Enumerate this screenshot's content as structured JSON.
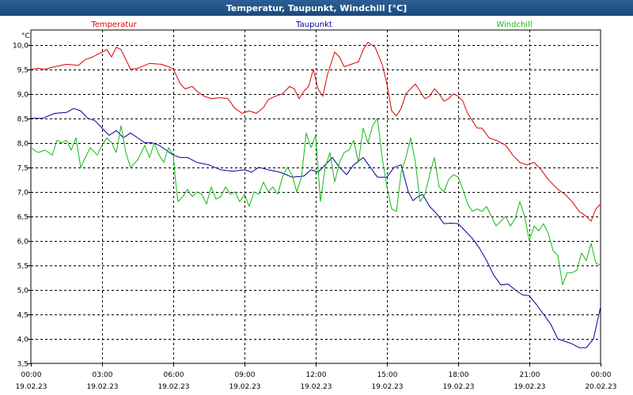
{
  "window": {
    "title": "Temperatur, Taupunkt, Windchill [°C]"
  },
  "chart_data": {
    "type": "line",
    "title": "Temperatur, Taupunkt, Windchill [°C]",
    "ylabel": "°C",
    "ylim": [
      3.5,
      10.3
    ],
    "yticks": [
      3.5,
      4.0,
      4.5,
      5.0,
      5.5,
      6.0,
      6.5,
      7.0,
      7.5,
      8.0,
      8.5,
      9.0,
      9.5,
      10.0
    ],
    "yticklabels": [
      "3,5",
      "4,0",
      "4,5",
      "5,0",
      "5,5",
      "6,0",
      "6,5",
      "7,0",
      "7,5",
      "8,0",
      "8,5",
      "9,0",
      "9,5",
      "10,0"
    ],
    "xlim_hours": [
      0,
      24
    ],
    "xticks_hours": [
      0,
      3,
      6,
      9,
      12,
      15,
      18,
      21,
      24
    ],
    "xticklabels": [
      {
        "time": "00:00",
        "date": "19.02.23"
      },
      {
        "time": "03:00",
        "date": "19.02.23"
      },
      {
        "time": "06:00",
        "date": "19.02.23"
      },
      {
        "time": "09:00",
        "date": "19.02.23"
      },
      {
        "time": "12:00",
        "date": "19.02.23"
      },
      {
        "time": "15:00",
        "date": "19.02.23"
      },
      {
        "time": "18:00",
        "date": "19.02.23"
      },
      {
        "time": "21:00",
        "date": "19.02.23"
      },
      {
        "time": "00:00",
        "date": "20.02.23"
      }
    ],
    "grid": true,
    "legend_placement": "top",
    "series": [
      {
        "name": "Temperatur",
        "color": "#dd0000",
        "points": [
          [
            0,
            9.5
          ],
          [
            0.3,
            9.52
          ],
          [
            0.6,
            9.5
          ],
          [
            1,
            9.55
          ],
          [
            1.5,
            9.6
          ],
          [
            2,
            9.58
          ],
          [
            2.3,
            9.7
          ],
          [
            2.6,
            9.75
          ],
          [
            3,
            9.85
          ],
          [
            3.2,
            9.9
          ],
          [
            3.4,
            9.75
          ],
          [
            3.6,
            9.95
          ],
          [
            3.8,
            9.9
          ],
          [
            4,
            9.7
          ],
          [
            4.2,
            9.5
          ],
          [
            4.5,
            9.52
          ],
          [
            5,
            9.62
          ],
          [
            5.5,
            9.6
          ],
          [
            5.8,
            9.55
          ],
          [
            6,
            9.5
          ],
          [
            6.3,
            9.2
          ],
          [
            6.5,
            9.1
          ],
          [
            6.8,
            9.15
          ],
          [
            7,
            9.05
          ],
          [
            7.3,
            8.95
          ],
          [
            7.6,
            8.9
          ],
          [
            8,
            8.92
          ],
          [
            8.3,
            8.9
          ],
          [
            8.6,
            8.7
          ],
          [
            8.9,
            8.6
          ],
          [
            9.2,
            8.65
          ],
          [
            9.5,
            8.6
          ],
          [
            9.8,
            8.72
          ],
          [
            10,
            8.88
          ],
          [
            10.3,
            8.95
          ],
          [
            10.6,
            9.0
          ],
          [
            10.9,
            9.15
          ],
          [
            11.1,
            9.1
          ],
          [
            11.3,
            8.9
          ],
          [
            11.5,
            9.05
          ],
          [
            11.7,
            9.15
          ],
          [
            11.9,
            9.5
          ],
          [
            12.1,
            9.1
          ],
          [
            12.3,
            8.95
          ],
          [
            12.5,
            9.4
          ],
          [
            12.8,
            9.85
          ],
          [
            13,
            9.75
          ],
          [
            13.2,
            9.55
          ],
          [
            13.5,
            9.6
          ],
          [
            13.8,
            9.65
          ],
          [
            14,
            9.9
          ],
          [
            14.2,
            10.05
          ],
          [
            14.5,
            9.95
          ],
          [
            14.8,
            9.6
          ],
          [
            15,
            9.2
          ],
          [
            15.2,
            8.65
          ],
          [
            15.4,
            8.55
          ],
          [
            15.6,
            8.7
          ],
          [
            15.8,
            9.0
          ],
          [
            16,
            9.1
          ],
          [
            16.2,
            9.2
          ],
          [
            16.4,
            9.05
          ],
          [
            16.6,
            8.9
          ],
          [
            16.8,
            8.95
          ],
          [
            17,
            9.1
          ],
          [
            17.2,
            9.0
          ],
          [
            17.4,
            8.85
          ],
          [
            17.6,
            8.9
          ],
          [
            17.8,
            9.0
          ],
          [
            18,
            8.95
          ],
          [
            18.2,
            8.85
          ],
          [
            18.4,
            8.6
          ],
          [
            18.6,
            8.45
          ],
          [
            18.8,
            8.3
          ],
          [
            19,
            8.3
          ],
          [
            19.3,
            8.1
          ],
          [
            19.6,
            8.05
          ],
          [
            20,
            7.95
          ],
          [
            20.3,
            7.75
          ],
          [
            20.6,
            7.6
          ],
          [
            20.9,
            7.55
          ],
          [
            21.2,
            7.6
          ],
          [
            21.5,
            7.45
          ],
          [
            21.8,
            7.25
          ],
          [
            22.2,
            7.05
          ],
          [
            22.5,
            6.95
          ],
          [
            22.8,
            6.8
          ],
          [
            23.1,
            6.6
          ],
          [
            23.4,
            6.5
          ],
          [
            23.6,
            6.4
          ],
          [
            23.8,
            6.65
          ],
          [
            24,
            6.75
          ]
        ]
      },
      {
        "name": "Taupunkt",
        "color": "#000099",
        "points": [
          [
            0,
            8.5
          ],
          [
            0.5,
            8.5
          ],
          [
            1,
            8.6
          ],
          [
            1.5,
            8.62
          ],
          [
            1.8,
            8.7
          ],
          [
            2.1,
            8.65
          ],
          [
            2.4,
            8.5
          ],
          [
            2.7,
            8.45
          ],
          [
            3,
            8.3
          ],
          [
            3.3,
            8.15
          ],
          [
            3.6,
            8.25
          ],
          [
            3.9,
            8.1
          ],
          [
            4.2,
            8.2
          ],
          [
            4.5,
            8.1
          ],
          [
            4.8,
            8.0
          ],
          [
            5.1,
            8.0
          ],
          [
            5.4,
            7.95
          ],
          [
            5.7,
            7.85
          ],
          [
            6,
            7.75
          ],
          [
            6.3,
            7.7
          ],
          [
            6.6,
            7.7
          ],
          [
            7,
            7.6
          ],
          [
            7.5,
            7.55
          ],
          [
            8,
            7.45
          ],
          [
            8.5,
            7.42
          ],
          [
            9,
            7.45
          ],
          [
            9.3,
            7.4
          ],
          [
            9.6,
            7.5
          ],
          [
            10,
            7.45
          ],
          [
            10.5,
            7.4
          ],
          [
            11,
            7.3
          ],
          [
            11.5,
            7.32
          ],
          [
            11.8,
            7.45
          ],
          [
            12.1,
            7.4
          ],
          [
            12.4,
            7.55
          ],
          [
            12.7,
            7.7
          ],
          [
            13,
            7.5
          ],
          [
            13.3,
            7.35
          ],
          [
            13.6,
            7.55
          ],
          [
            14,
            7.7
          ],
          [
            14.3,
            7.5
          ],
          [
            14.6,
            7.3
          ],
          [
            15,
            7.3
          ],
          [
            15.3,
            7.5
          ],
          [
            15.6,
            7.55
          ],
          [
            15.9,
            7.0
          ],
          [
            16.1,
            6.82
          ],
          [
            16.3,
            6.9
          ],
          [
            16.5,
            6.95
          ],
          [
            16.8,
            6.7
          ],
          [
            17.1,
            6.55
          ],
          [
            17.4,
            6.35
          ],
          [
            17.7,
            6.36
          ],
          [
            18,
            6.35
          ],
          [
            18.3,
            6.2
          ],
          [
            18.6,
            6.05
          ],
          [
            18.9,
            5.85
          ],
          [
            19.2,
            5.6
          ],
          [
            19.5,
            5.3
          ],
          [
            19.8,
            5.1
          ],
          [
            20.1,
            5.12
          ],
          [
            20.4,
            5.0
          ],
          [
            20.7,
            4.9
          ],
          [
            21,
            4.88
          ],
          [
            21.3,
            4.7
          ],
          [
            21.6,
            4.5
          ],
          [
            21.9,
            4.3
          ],
          [
            22.2,
            4.0
          ],
          [
            22.5,
            3.95
          ],
          [
            22.8,
            3.9
          ],
          [
            23.1,
            3.82
          ],
          [
            23.4,
            3.82
          ],
          [
            23.7,
            4.0
          ],
          [
            24,
            4.65
          ]
        ]
      },
      {
        "name": "Windchill",
        "color": "#11bb11",
        "points": [
          [
            0,
            7.9
          ],
          [
            0.3,
            7.8
          ],
          [
            0.6,
            7.85
          ],
          [
            0.9,
            7.75
          ],
          [
            1.1,
            8.05
          ],
          [
            1.3,
            8.0
          ],
          [
            1.5,
            8.05
          ],
          [
            1.7,
            7.85
          ],
          [
            1.9,
            8.1
          ],
          [
            2.1,
            7.5
          ],
          [
            2.3,
            7.7
          ],
          [
            2.5,
            7.9
          ],
          [
            2.8,
            7.75
          ],
          [
            3,
            7.95
          ],
          [
            3.2,
            8.1
          ],
          [
            3.4,
            8.0
          ],
          [
            3.6,
            7.8
          ],
          [
            3.8,
            8.35
          ],
          [
            4,
            7.8
          ],
          [
            4.2,
            7.5
          ],
          [
            4.5,
            7.65
          ],
          [
            4.8,
            7.95
          ],
          [
            5,
            7.7
          ],
          [
            5.2,
            8.0
          ],
          [
            5.4,
            7.75
          ],
          [
            5.6,
            7.6
          ],
          [
            5.8,
            7.9
          ],
          [
            6,
            7.75
          ],
          [
            6.1,
            7.2
          ],
          [
            6.2,
            6.8
          ],
          [
            6.4,
            6.9
          ],
          [
            6.6,
            7.05
          ],
          [
            6.8,
            6.9
          ],
          [
            7,
            7.0
          ],
          [
            7.2,
            6.95
          ],
          [
            7.4,
            6.75
          ],
          [
            7.6,
            7.1
          ],
          [
            7.8,
            6.85
          ],
          [
            8,
            6.9
          ],
          [
            8.2,
            7.1
          ],
          [
            8.4,
            6.95
          ],
          [
            8.6,
            7.0
          ],
          [
            8.8,
            6.8
          ],
          [
            9,
            6.95
          ],
          [
            9.2,
            6.7
          ],
          [
            9.4,
            7.0
          ],
          [
            9.6,
            6.95
          ],
          [
            9.8,
            7.2
          ],
          [
            10,
            7.0
          ],
          [
            10.2,
            7.1
          ],
          [
            10.4,
            6.95
          ],
          [
            10.6,
            7.3
          ],
          [
            10.8,
            7.5
          ],
          [
            11,
            7.35
          ],
          [
            11.2,
            7.0
          ],
          [
            11.4,
            7.3
          ],
          [
            11.6,
            8.2
          ],
          [
            11.8,
            7.9
          ],
          [
            12,
            8.15
          ],
          [
            12.2,
            6.8
          ],
          [
            12.4,
            7.5
          ],
          [
            12.6,
            7.8
          ],
          [
            12.8,
            7.2
          ],
          [
            13,
            7.6
          ],
          [
            13.2,
            7.8
          ],
          [
            13.4,
            7.85
          ],
          [
            13.6,
            8.05
          ],
          [
            13.8,
            7.6
          ],
          [
            14,
            8.3
          ],
          [
            14.2,
            8.0
          ],
          [
            14.4,
            8.35
          ],
          [
            14.6,
            8.5
          ],
          [
            14.8,
            7.7
          ],
          [
            15,
            7.1
          ],
          [
            15.2,
            6.65
          ],
          [
            15.4,
            6.6
          ],
          [
            15.6,
            7.4
          ],
          [
            15.8,
            7.7
          ],
          [
            16,
            8.1
          ],
          [
            16.2,
            7.6
          ],
          [
            16.4,
            6.8
          ],
          [
            16.6,
            6.95
          ],
          [
            16.8,
            7.35
          ],
          [
            17,
            7.7
          ],
          [
            17.2,
            7.1
          ],
          [
            17.4,
            7.0
          ],
          [
            17.6,
            7.25
          ],
          [
            17.8,
            7.35
          ],
          [
            18,
            7.3
          ],
          [
            18.2,
            7.05
          ],
          [
            18.4,
            6.75
          ],
          [
            18.6,
            6.6
          ],
          [
            18.8,
            6.65
          ],
          [
            19,
            6.6
          ],
          [
            19.2,
            6.7
          ],
          [
            19.4,
            6.5
          ],
          [
            19.6,
            6.3
          ],
          [
            19.8,
            6.4
          ],
          [
            20,
            6.5
          ],
          [
            20.2,
            6.3
          ],
          [
            20.4,
            6.45
          ],
          [
            20.6,
            6.8
          ],
          [
            20.8,
            6.5
          ],
          [
            21,
            6.0
          ],
          [
            21.2,
            6.3
          ],
          [
            21.4,
            6.2
          ],
          [
            21.6,
            6.35
          ],
          [
            21.8,
            6.15
          ],
          [
            22,
            5.8
          ],
          [
            22.2,
            5.7
          ],
          [
            22.4,
            5.1
          ],
          [
            22.6,
            5.35
          ],
          [
            22.8,
            5.35
          ],
          [
            23,
            5.4
          ],
          [
            23.2,
            5.75
          ],
          [
            23.4,
            5.6
          ],
          [
            23.6,
            5.95
          ],
          [
            23.8,
            5.55
          ],
          [
            24,
            5.5
          ]
        ]
      }
    ]
  }
}
